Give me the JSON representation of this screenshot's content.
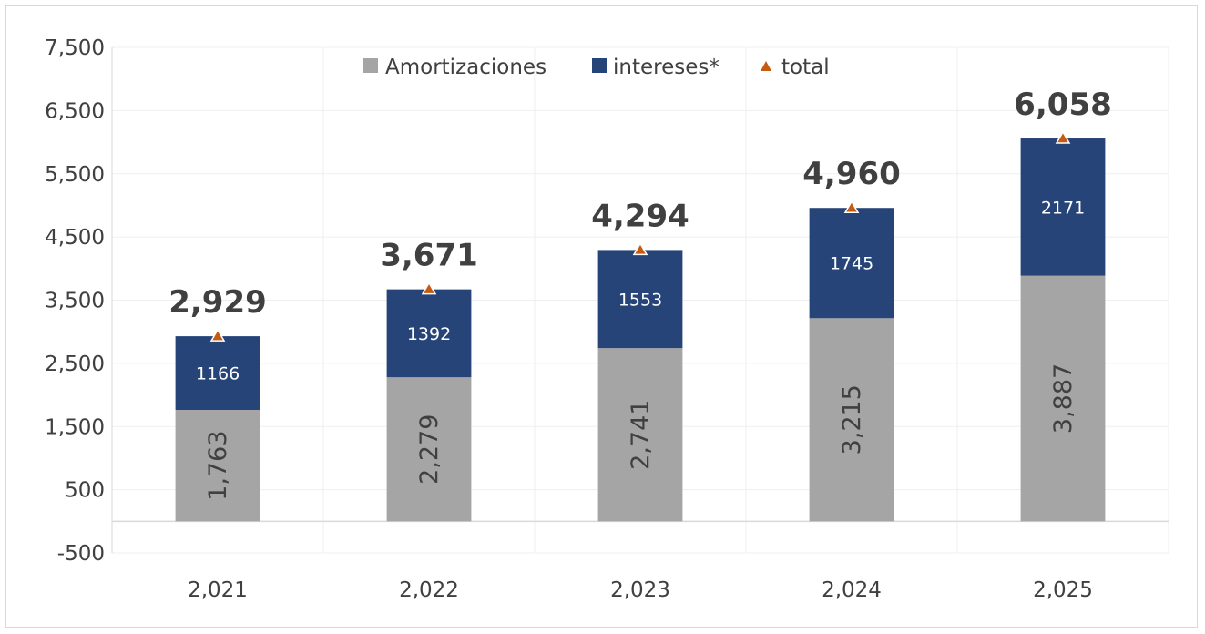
{
  "chart_data": {
    "type": "bar",
    "stacked": true,
    "title": "",
    "xlabel": "",
    "ylabel": "",
    "categories": [
      "2,021",
      "2,022",
      "2,023",
      "2,024",
      "2,025"
    ],
    "series": [
      {
        "name": "Amortizaciones",
        "color": "#a5a5a5",
        "values": [
          1763,
          2279,
          2741,
          3215,
          3887
        ],
        "labels": [
          "1,763",
          "2,279",
          "2,741",
          "3,215",
          "3,887"
        ]
      },
      {
        "name": "intereses*",
        "color": "#264478",
        "values": [
          1166,
          1392,
          1553,
          1745,
          2171
        ],
        "labels": [
          "1166",
          "1392",
          "1553",
          "1745",
          "2171"
        ]
      },
      {
        "name": "total",
        "color": "#c55a11",
        "marker": "triangle",
        "values": [
          2929,
          3671,
          4294,
          4960,
          6058
        ],
        "labels": [
          "2,929",
          "3,671",
          "4,294",
          "4,960",
          "6,058"
        ]
      }
    ],
    "ylim": [
      -500,
      7500
    ],
    "yticks": [
      7500,
      6500,
      5500,
      4500,
      3500,
      2500,
      1500,
      500,
      -500
    ],
    "ytick_labels": [
      "7,500",
      "6,500",
      "5,500",
      "4,500",
      "3,500",
      "2,500",
      "1,500",
      "500",
      "-500"
    ],
    "grid": true,
    "legend_position": "top-center"
  }
}
